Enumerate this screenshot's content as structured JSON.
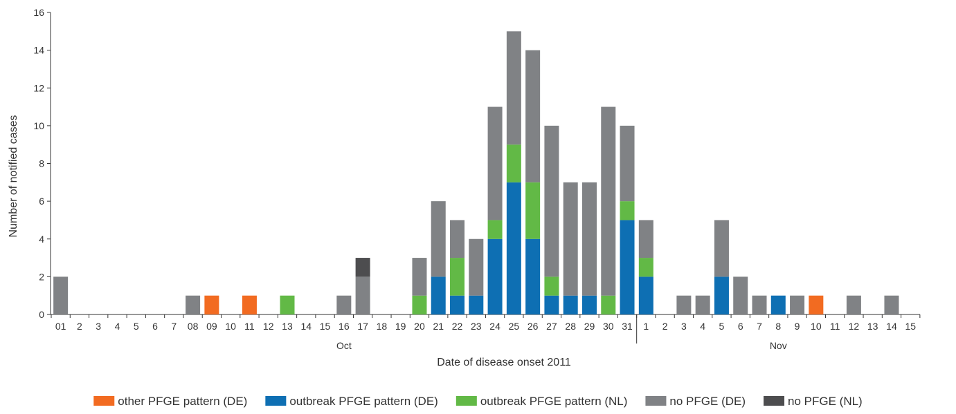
{
  "chart_data": {
    "type": "bar",
    "stacked": true,
    "ylabel": "Number of notified cases",
    "xlabel": "Date of disease onset 2011",
    "ylim": [
      0,
      16
    ],
    "yticks": [
      0,
      2,
      4,
      6,
      8,
      10,
      12,
      14,
      16
    ],
    "months": [
      {
        "label": "Oct",
        "count": 31
      },
      {
        "label": "Nov",
        "count": 15
      }
    ],
    "categories": [
      "01",
      "2",
      "3",
      "4",
      "5",
      "6",
      "7",
      "08",
      "09",
      "10",
      "11",
      "12",
      "13",
      "14",
      "15",
      "16",
      "17",
      "18",
      "19",
      "20",
      "21",
      "22",
      "23",
      "24",
      "25",
      "26",
      "27",
      "28",
      "29",
      "30",
      "31",
      "1",
      "2",
      "3",
      "4",
      "5",
      "6",
      "7",
      "8",
      "9",
      "10",
      "11",
      "12",
      "13",
      "14",
      "15"
    ],
    "series": [
      {
        "name": "other PFGE pattern (DE)",
        "color": "#f26b21",
        "values": [
          0,
          0,
          0,
          0,
          0,
          0,
          0,
          0,
          1,
          0,
          1,
          0,
          0,
          0,
          0,
          0,
          0,
          0,
          0,
          0,
          0,
          0,
          0,
          0,
          0,
          0,
          0,
          0,
          0,
          0,
          0,
          0,
          0,
          0,
          0,
          0,
          0,
          0,
          0,
          0,
          1,
          0,
          0,
          0,
          0,
          0
        ]
      },
      {
        "name": "outbreak PFGE pattern (DE)",
        "color": "#0e6fb3",
        "values": [
          0,
          0,
          0,
          0,
          0,
          0,
          0,
          0,
          0,
          0,
          0,
          0,
          0,
          0,
          0,
          0,
          0,
          0,
          0,
          0,
          2,
          1,
          1,
          4,
          7,
          4,
          1,
          1,
          1,
          0,
          5,
          2,
          0,
          0,
          0,
          2,
          0,
          0,
          1,
          0,
          0,
          0,
          0,
          0,
          0,
          0
        ]
      },
      {
        "name": "outbreak PFGE pattern (NL)",
        "color": "#62b946",
        "values": [
          0,
          0,
          0,
          0,
          0,
          0,
          0,
          0,
          0,
          0,
          0,
          0,
          1,
          0,
          0,
          0,
          0,
          0,
          0,
          1,
          0,
          2,
          0,
          1,
          2,
          3,
          1,
          0,
          0,
          1,
          1,
          1,
          0,
          0,
          0,
          0,
          0,
          0,
          0,
          0,
          0,
          0,
          0,
          0,
          0,
          0
        ]
      },
      {
        "name": "no PFGE (DE)",
        "color": "#808285",
        "values": [
          2,
          0,
          0,
          0,
          0,
          0,
          0,
          1,
          0,
          0,
          0,
          0,
          0,
          0,
          0,
          1,
          2,
          0,
          0,
          2,
          4,
          2,
          3,
          6,
          6,
          7,
          8,
          6,
          6,
          10,
          4,
          2,
          0,
          1,
          1,
          3,
          2,
          1,
          0,
          1,
          0,
          0,
          1,
          0,
          1,
          0
        ]
      },
      {
        "name": "no PFGE (NL)",
        "color": "#4d4d4f",
        "values": [
          0,
          0,
          0,
          0,
          0,
          0,
          0,
          0,
          0,
          0,
          0,
          0,
          0,
          0,
          0,
          0,
          1,
          0,
          0,
          0,
          0,
          0,
          0,
          0,
          0,
          0,
          0,
          0,
          0,
          0,
          0,
          0,
          0,
          0,
          0,
          0,
          0,
          0,
          0,
          0,
          0,
          0,
          0,
          0,
          0,
          0
        ]
      }
    ]
  }
}
